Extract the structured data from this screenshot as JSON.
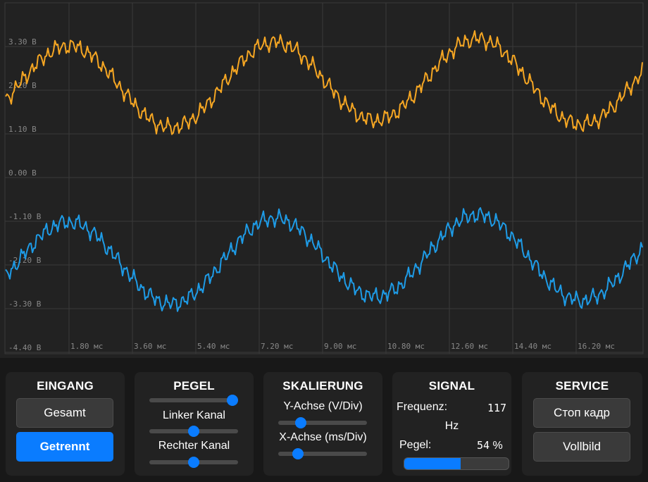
{
  "scope": {
    "y_ticks": [
      "3.30 В",
      "2.20 В",
      "1.10 В",
      "0.00 В",
      "-1.10 В",
      "-2.20 В",
      "-3.30 В",
      "-4.40 В"
    ],
    "x_ticks": [
      "1.80 мс",
      "3.60 мс",
      "5.40 мс",
      "7.20 мс",
      "9.00 мс",
      "10.80 мс",
      "12.60 мс",
      "14.40 мс",
      "16.20 мс"
    ],
    "colors": {
      "left_channel": "#f5a623",
      "right_channel": "#1e9be6",
      "grid": "#3a3a3a",
      "tick_text": "#888888"
    }
  },
  "eingang": {
    "title": "EINGANG",
    "gesamt_label": "Gesamt",
    "getrennt_label": "Getrennt",
    "selected": "Getrennt"
  },
  "pegel": {
    "title": "PEGEL",
    "master_level": 0.94,
    "left_label": "Linker Kanal",
    "left_level": 0.5,
    "right_label": "Rechter Kanal",
    "right_level": 0.5
  },
  "skalierung": {
    "title": "SKALIERUNG",
    "y_label": "Y-Achse (V/Div)",
    "y_level": 0.25,
    "x_label": "X-Achse (ms/Div)",
    "x_level": 0.22
  },
  "signal": {
    "title": "SIGNAL",
    "freq_label": "Frequenz:",
    "freq_value": "117",
    "freq_unit": "Hz",
    "pegel_label": "Pegel:",
    "pegel_value": "54",
    "pegel_unit": "%",
    "pegel_fraction": 0.54
  },
  "service": {
    "title": "SERVICE",
    "freeze_label": "Стоп кадр",
    "fullscreen_label": "Vollbild"
  }
}
